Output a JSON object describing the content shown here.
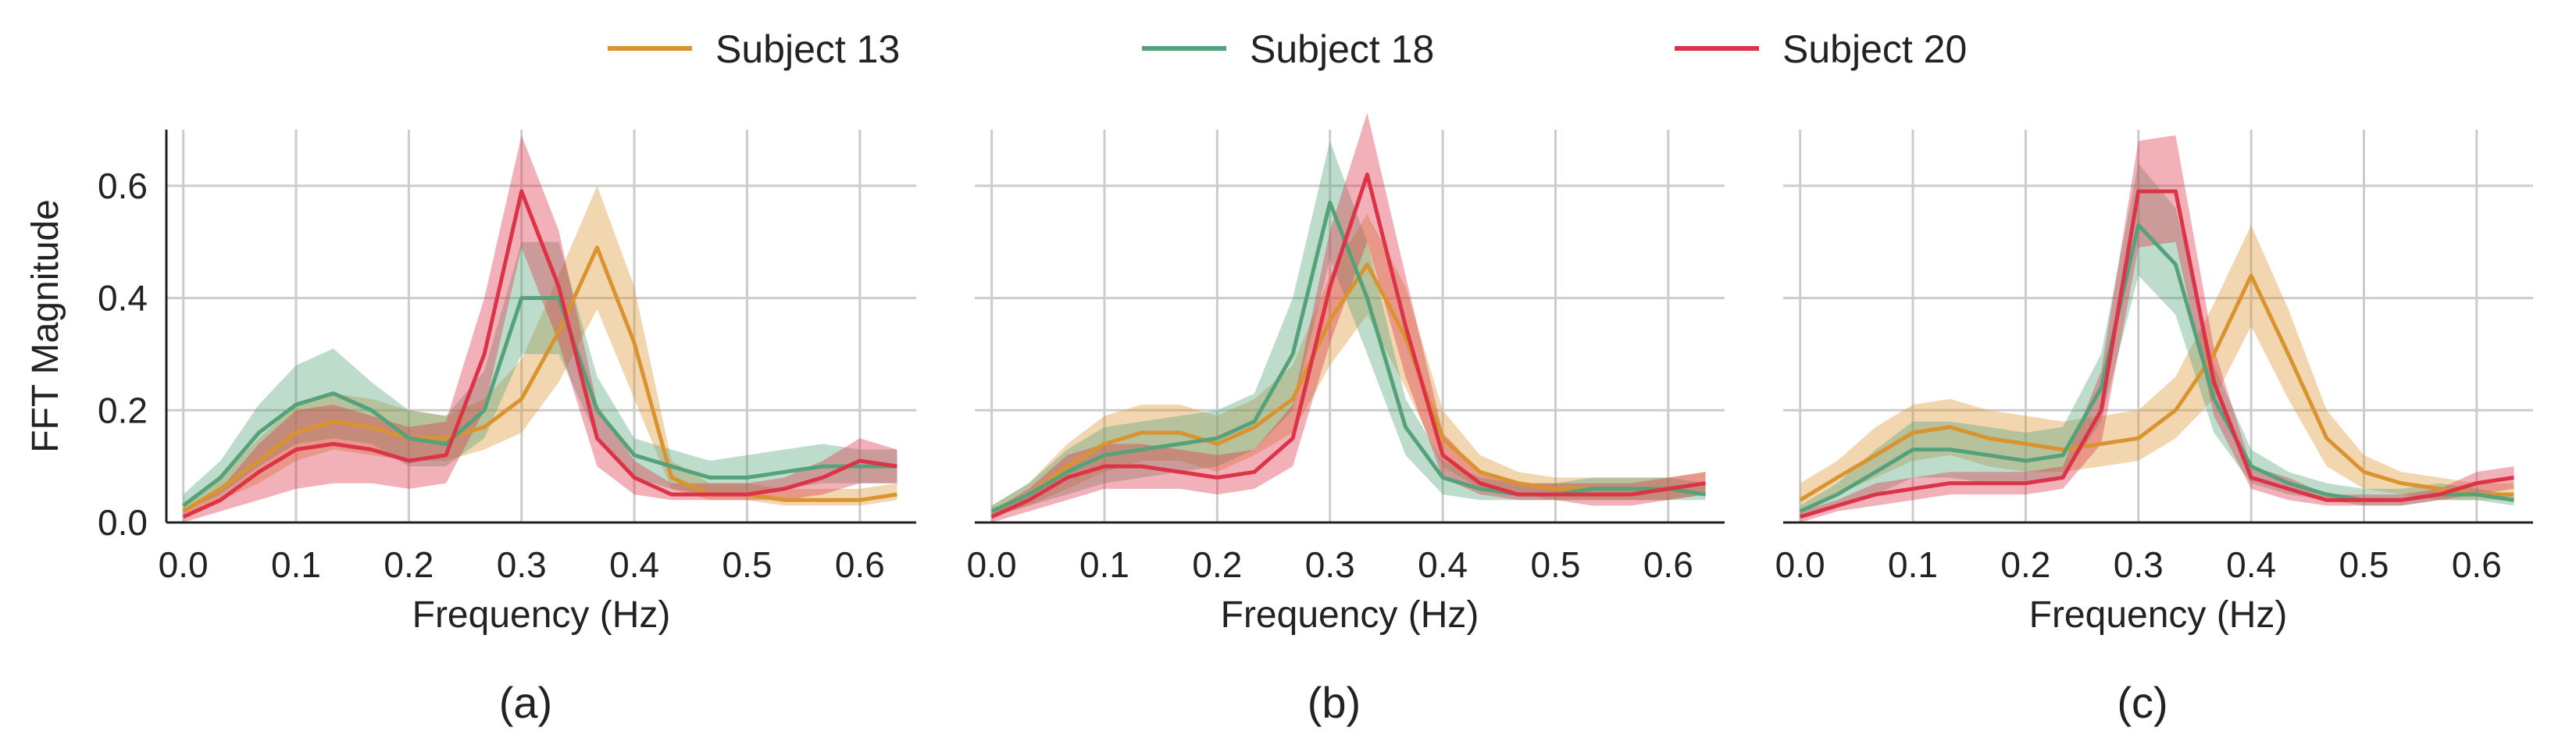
{
  "legend": [
    {
      "name": "Subject 13",
      "color": "#D9932F"
    },
    {
      "name": "Subject 18",
      "color": "#55A27A"
    },
    {
      "name": "Subject 20",
      "color": "#DD3347"
    }
  ],
  "chart_data": [
    {
      "type": "line",
      "panel_label": "(a)",
      "xlabel": "Frequency (Hz)",
      "ylabel": "FFT Magnitude",
      "xlim": [
        -0.015,
        0.65
      ],
      "ylim": [
        0.0,
        0.7
      ],
      "xticks": [
        "0.0",
        "0.1",
        "0.2",
        "0.3",
        "0.4",
        "0.5",
        "0.6"
      ],
      "yticks": [
        "0.0",
        "0.2",
        "0.4",
        "0.6"
      ],
      "grid": true,
      "x": [
        0.0,
        0.033,
        0.067,
        0.1,
        0.133,
        0.167,
        0.2,
        0.233,
        0.267,
        0.3,
        0.333,
        0.367,
        0.4,
        0.433,
        0.467,
        0.5,
        0.533,
        0.567,
        0.6,
        0.633
      ],
      "series": [
        {
          "name": "Subject 13",
          "color": "#D9932F",
          "values": [
            0.02,
            0.06,
            0.11,
            0.16,
            0.18,
            0.17,
            0.15,
            0.15,
            0.17,
            0.22,
            0.34,
            0.49,
            0.32,
            0.08,
            0.05,
            0.05,
            0.04,
            0.04,
            0.04,
            0.05
          ],
          "lower": [
            0.01,
            0.04,
            0.07,
            0.11,
            0.13,
            0.12,
            0.11,
            0.11,
            0.13,
            0.16,
            0.25,
            0.38,
            0.22,
            0.06,
            0.04,
            0.04,
            0.03,
            0.03,
            0.03,
            0.04
          ],
          "upper": [
            0.03,
            0.08,
            0.15,
            0.21,
            0.23,
            0.22,
            0.2,
            0.19,
            0.22,
            0.29,
            0.44,
            0.6,
            0.42,
            0.11,
            0.07,
            0.07,
            0.06,
            0.06,
            0.06,
            0.07
          ]
        },
        {
          "name": "Subject 18",
          "color": "#55A27A",
          "values": [
            0.03,
            0.08,
            0.16,
            0.21,
            0.23,
            0.2,
            0.15,
            0.14,
            0.2,
            0.4,
            0.4,
            0.2,
            0.12,
            0.1,
            0.08,
            0.08,
            0.09,
            0.1,
            0.1,
            0.1
          ],
          "lower": [
            0.02,
            0.05,
            0.1,
            0.14,
            0.15,
            0.14,
            0.1,
            0.1,
            0.15,
            0.3,
            0.3,
            0.15,
            0.08,
            0.06,
            0.05,
            0.05,
            0.06,
            0.07,
            0.07,
            0.07
          ],
          "upper": [
            0.05,
            0.11,
            0.21,
            0.28,
            0.31,
            0.25,
            0.2,
            0.19,
            0.27,
            0.5,
            0.5,
            0.26,
            0.15,
            0.13,
            0.11,
            0.12,
            0.13,
            0.14,
            0.13,
            0.13
          ]
        },
        {
          "name": "Subject 20",
          "color": "#DD3347",
          "values": [
            0.01,
            0.04,
            0.09,
            0.13,
            0.14,
            0.13,
            0.11,
            0.12,
            0.3,
            0.59,
            0.42,
            0.15,
            0.08,
            0.05,
            0.05,
            0.05,
            0.06,
            0.08,
            0.11,
            0.1
          ],
          "lower": [
            0.0,
            0.02,
            0.04,
            0.06,
            0.07,
            0.07,
            0.06,
            0.07,
            0.2,
            0.49,
            0.32,
            0.1,
            0.05,
            0.04,
            0.04,
            0.04,
            0.04,
            0.05,
            0.07,
            0.07
          ],
          "upper": [
            0.02,
            0.06,
            0.14,
            0.2,
            0.21,
            0.19,
            0.17,
            0.18,
            0.4,
            0.69,
            0.52,
            0.21,
            0.11,
            0.07,
            0.07,
            0.07,
            0.08,
            0.11,
            0.15,
            0.13
          ]
        }
      ]
    },
    {
      "type": "line",
      "panel_label": "(b)",
      "xlabel": "Frequency (Hz)",
      "ylabel": "",
      "xlim": [
        -0.015,
        0.65
      ],
      "ylim": [
        0.0,
        0.7
      ],
      "xticks": [
        "0.0",
        "0.1",
        "0.2",
        "0.3",
        "0.4",
        "0.5",
        "0.6"
      ],
      "yticks": [
        "0.0",
        "0.2",
        "0.4",
        "0.6"
      ],
      "grid": true,
      "x": [
        0.0,
        0.033,
        0.067,
        0.1,
        0.133,
        0.167,
        0.2,
        0.233,
        0.267,
        0.3,
        0.333,
        0.367,
        0.4,
        0.433,
        0.467,
        0.5,
        0.533,
        0.567,
        0.6,
        0.633
      ],
      "series": [
        {
          "name": "Subject 13",
          "color": "#D9932F",
          "values": [
            0.02,
            0.05,
            0.1,
            0.14,
            0.16,
            0.16,
            0.14,
            0.17,
            0.22,
            0.36,
            0.46,
            0.33,
            0.15,
            0.09,
            0.07,
            0.06,
            0.06,
            0.06,
            0.06,
            0.07
          ],
          "lower": [
            0.01,
            0.03,
            0.06,
            0.09,
            0.11,
            0.11,
            0.09,
            0.12,
            0.16,
            0.28,
            0.37,
            0.24,
            0.1,
            0.06,
            0.05,
            0.04,
            0.04,
            0.04,
            0.04,
            0.05
          ],
          "upper": [
            0.03,
            0.07,
            0.14,
            0.19,
            0.21,
            0.21,
            0.19,
            0.22,
            0.28,
            0.44,
            0.55,
            0.42,
            0.2,
            0.12,
            0.09,
            0.08,
            0.08,
            0.08,
            0.08,
            0.09
          ]
        },
        {
          "name": "Subject 18",
          "color": "#55A27A",
          "values": [
            0.02,
            0.05,
            0.09,
            0.12,
            0.13,
            0.14,
            0.15,
            0.18,
            0.3,
            0.57,
            0.4,
            0.17,
            0.08,
            0.06,
            0.05,
            0.05,
            0.06,
            0.06,
            0.06,
            0.05
          ],
          "lower": [
            0.01,
            0.03,
            0.05,
            0.07,
            0.08,
            0.09,
            0.1,
            0.13,
            0.2,
            0.47,
            0.3,
            0.12,
            0.05,
            0.04,
            0.04,
            0.04,
            0.04,
            0.04,
            0.04,
            0.04
          ],
          "upper": [
            0.03,
            0.07,
            0.13,
            0.17,
            0.18,
            0.19,
            0.2,
            0.23,
            0.4,
            0.68,
            0.5,
            0.22,
            0.11,
            0.08,
            0.07,
            0.07,
            0.08,
            0.08,
            0.08,
            0.07
          ]
        },
        {
          "name": "Subject 20",
          "color": "#DD3347",
          "values": [
            0.01,
            0.04,
            0.08,
            0.1,
            0.1,
            0.09,
            0.08,
            0.09,
            0.15,
            0.42,
            0.62,
            0.35,
            0.12,
            0.07,
            0.05,
            0.05,
            0.05,
            0.05,
            0.06,
            0.07
          ],
          "lower": [
            0.0,
            0.02,
            0.04,
            0.06,
            0.06,
            0.06,
            0.05,
            0.06,
            0.1,
            0.32,
            0.5,
            0.26,
            0.08,
            0.05,
            0.04,
            0.04,
            0.03,
            0.03,
            0.04,
            0.05
          ],
          "upper": [
            0.02,
            0.06,
            0.12,
            0.14,
            0.14,
            0.13,
            0.12,
            0.13,
            0.21,
            0.52,
            0.73,
            0.44,
            0.16,
            0.09,
            0.07,
            0.07,
            0.07,
            0.07,
            0.08,
            0.09
          ]
        }
      ]
    },
    {
      "type": "line",
      "panel_label": "(c)",
      "xlabel": "Frequency (Hz)",
      "ylabel": "",
      "xlim": [
        -0.015,
        0.65
      ],
      "ylim": [
        0.0,
        0.7
      ],
      "xticks": [
        "0.0",
        "0.1",
        "0.2",
        "0.3",
        "0.4",
        "0.5",
        "0.6"
      ],
      "yticks": [
        "0.0",
        "0.2",
        "0.4",
        "0.6"
      ],
      "grid": true,
      "x": [
        0.0,
        0.033,
        0.067,
        0.1,
        0.133,
        0.167,
        0.2,
        0.233,
        0.267,
        0.3,
        0.333,
        0.367,
        0.4,
        0.433,
        0.467,
        0.5,
        0.533,
        0.567,
        0.6,
        0.633
      ],
      "series": [
        {
          "name": "Subject 13",
          "color": "#D9932F",
          "values": [
            0.04,
            0.08,
            0.12,
            0.16,
            0.17,
            0.15,
            0.14,
            0.13,
            0.14,
            0.15,
            0.2,
            0.3,
            0.44,
            0.3,
            0.15,
            0.09,
            0.07,
            0.06,
            0.05,
            0.05
          ],
          "lower": [
            0.02,
            0.05,
            0.08,
            0.11,
            0.12,
            0.1,
            0.09,
            0.09,
            0.1,
            0.11,
            0.15,
            0.22,
            0.35,
            0.22,
            0.1,
            0.06,
            0.05,
            0.04,
            0.04,
            0.04
          ],
          "upper": [
            0.07,
            0.11,
            0.17,
            0.21,
            0.22,
            0.2,
            0.19,
            0.18,
            0.19,
            0.2,
            0.26,
            0.39,
            0.53,
            0.38,
            0.2,
            0.12,
            0.09,
            0.08,
            0.07,
            0.07
          ]
        },
        {
          "name": "Subject 18",
          "color": "#55A27A",
          "values": [
            0.02,
            0.05,
            0.09,
            0.13,
            0.13,
            0.12,
            0.11,
            0.12,
            0.24,
            0.53,
            0.46,
            0.22,
            0.1,
            0.07,
            0.05,
            0.04,
            0.04,
            0.05,
            0.05,
            0.04
          ],
          "lower": [
            0.01,
            0.03,
            0.05,
            0.08,
            0.08,
            0.07,
            0.07,
            0.08,
            0.18,
            0.44,
            0.37,
            0.16,
            0.07,
            0.05,
            0.04,
            0.03,
            0.03,
            0.04,
            0.04,
            0.03
          ],
          "upper": [
            0.03,
            0.07,
            0.13,
            0.18,
            0.18,
            0.17,
            0.16,
            0.17,
            0.3,
            0.64,
            0.56,
            0.28,
            0.13,
            0.09,
            0.07,
            0.06,
            0.06,
            0.07,
            0.06,
            0.05
          ]
        },
        {
          "name": "Subject 20",
          "color": "#DD3347",
          "values": [
            0.01,
            0.03,
            0.05,
            0.06,
            0.07,
            0.07,
            0.07,
            0.08,
            0.2,
            0.59,
            0.59,
            0.25,
            0.08,
            0.06,
            0.04,
            0.04,
            0.04,
            0.05,
            0.07,
            0.08
          ],
          "lower": [
            0.0,
            0.02,
            0.03,
            0.04,
            0.05,
            0.05,
            0.05,
            0.06,
            0.14,
            0.49,
            0.5,
            0.19,
            0.06,
            0.04,
            0.03,
            0.03,
            0.03,
            0.04,
            0.05,
            0.06
          ],
          "upper": [
            0.02,
            0.04,
            0.07,
            0.08,
            0.09,
            0.09,
            0.09,
            0.1,
            0.27,
            0.68,
            0.69,
            0.31,
            0.1,
            0.08,
            0.05,
            0.05,
            0.05,
            0.06,
            0.09,
            0.1
          ]
        }
      ]
    }
  ]
}
